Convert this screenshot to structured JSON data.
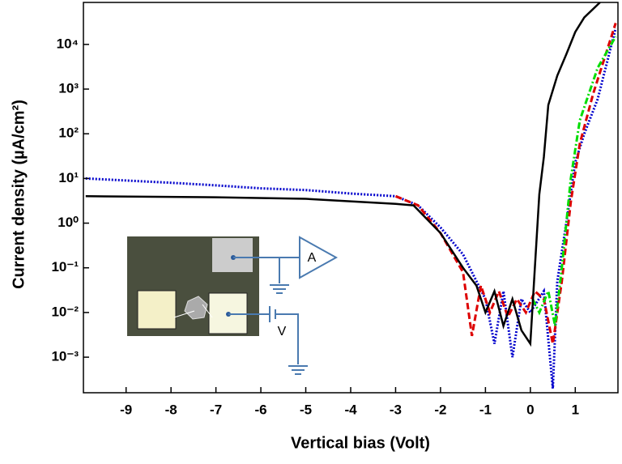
{
  "chart_data": {
    "type": "line",
    "xlabel": "Vertical bias (Volt)",
    "ylabel": "Current density (µA/cm²)",
    "xlim": [
      -9.95,
      1.95
    ],
    "ylim": [
      0.00016,
      87000
    ],
    "yscale": "log",
    "xticks": [
      -9,
      -8,
      -7,
      -6,
      -5,
      -4,
      -3,
      -2,
      -1,
      0,
      1
    ],
    "yticks": [
      {
        "value": 0.001,
        "label": "10⁻³"
      },
      {
        "value": 0.01,
        "label": "10⁻²"
      },
      {
        "value": 0.1,
        "label": "10⁻¹"
      },
      {
        "value": 1,
        "label": "10⁰"
      },
      {
        "value": 10,
        "label": "10¹"
      },
      {
        "value": 100,
        "label": "10²"
      },
      {
        "value": 1000,
        "label": "10³"
      },
      {
        "value": 10000,
        "label": "10⁴"
      }
    ],
    "annotations": [
      "A",
      "V"
    ],
    "series": [
      {
        "color": "#0000cc",
        "style": "dotted",
        "x": [
          -9.9,
          -8,
          -7,
          -6,
          -5,
          -4,
          -3,
          -2.5,
          -2,
          -1.5,
          -1.2,
          -1,
          -0.8,
          -0.6,
          -0.4,
          -0.2,
          0,
          0.3,
          0.5,
          0.6,
          0.8,
          1.0,
          1.2,
          1.5,
          1.9
        ],
        "values": [
          10,
          8,
          7,
          6,
          5.5,
          4.6,
          4,
          2.5,
          0.8,
          0.2,
          0.05,
          0.02,
          0.002,
          0.03,
          0.001,
          0.02,
          0.01,
          0.03,
          0.0002,
          0.05,
          1,
          23,
          100,
          600,
          23000
        ]
      },
      {
        "color": "#dd0000",
        "style": "dashed",
        "x": [
          -3,
          -2.5,
          -2,
          -1.5,
          -1.3,
          -1.1,
          -0.9,
          -0.7,
          -0.5,
          -0.3,
          -0.1,
          0.1,
          0.3,
          0.5,
          0.7,
          0.9,
          1.1,
          1.4,
          1.9
        ],
        "values": [
          4,
          2.5,
          0.6,
          0.08,
          0.003,
          0.04,
          0.01,
          0.03,
          0.008,
          0.02,
          0.01,
          0.03,
          0.02,
          0.002,
          0.05,
          3,
          60,
          800,
          30000
        ]
      },
      {
        "color": "#00dd00",
        "style": "dashdot",
        "x": [
          0.05,
          0.2,
          0.4,
          0.55,
          0.7,
          0.9,
          1.1,
          1.5,
          1.9
        ],
        "values": [
          0.02,
          0.01,
          0.03,
          0.005,
          0.1,
          10,
          200,
          3000,
          15000
        ]
      },
      {
        "color": "#000000",
        "style": "solid",
        "x": [
          -9.9,
          -7,
          -5,
          -3,
          -2.6,
          -2,
          -1.5,
          -1.2,
          -1,
          -0.8,
          -0.6,
          -0.4,
          -0.2,
          0,
          0.1,
          0.2,
          0.3,
          0.4,
          0.6,
          0.8,
          1.0,
          1.2,
          1.55
        ],
        "values": [
          4,
          3.8,
          3.5,
          2.7,
          2.5,
          0.6,
          0.1,
          0.04,
          0.01,
          0.03,
          0.005,
          0.02,
          0.004,
          0.002,
          0.1,
          4.4,
          30,
          440,
          2000,
          6000,
          19000,
          40000,
          87000
        ]
      }
    ]
  }
}
